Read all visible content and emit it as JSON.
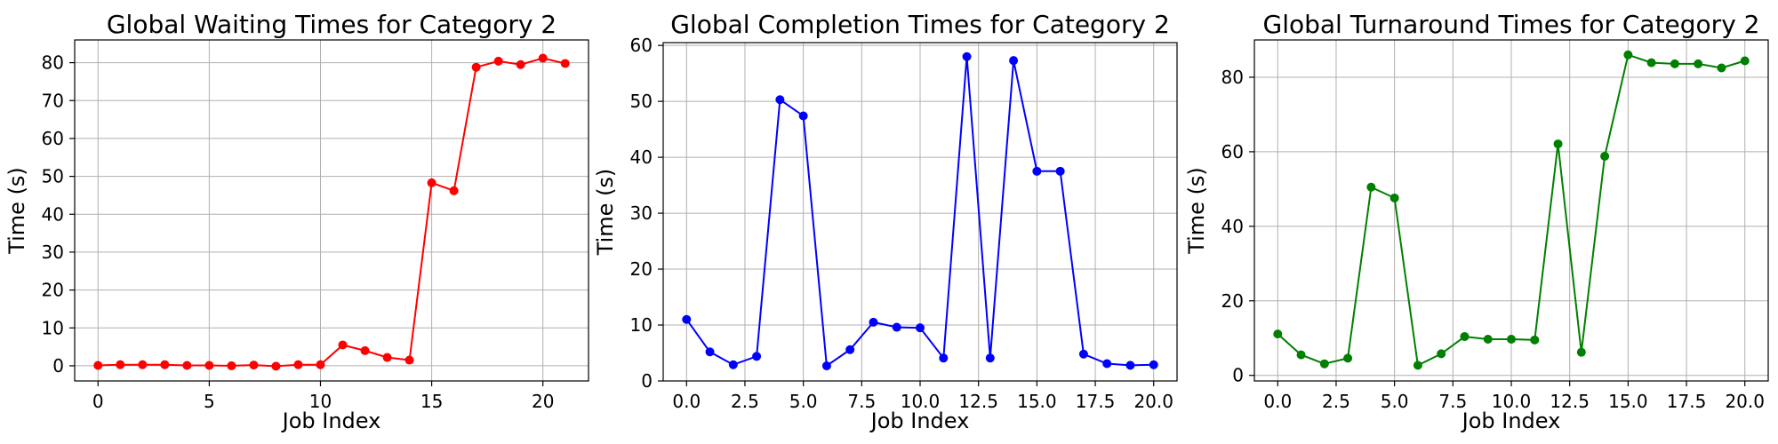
{
  "chart_data": [
    {
      "type": "line",
      "title": "Global Waiting Times for Category 2",
      "xlabel": "Job Index",
      "ylabel": "Time (s)",
      "xlim": [
        -1.05,
        22.05
      ],
      "ylim": [
        -4,
        86
      ],
      "xticks": [
        0,
        5,
        10,
        15,
        20
      ],
      "xtick_labels": [
        "0",
        "5",
        "10",
        "15",
        "20"
      ],
      "yticks": [
        0,
        10,
        20,
        30,
        40,
        50,
        60,
        70,
        80
      ],
      "ytick_labels": [
        "0",
        "10",
        "20",
        "30",
        "40",
        "50",
        "60",
        "70",
        "80"
      ],
      "grid": true,
      "color": "#ff0000",
      "series": [
        {
          "x": [
            0,
            1,
            2,
            3,
            4,
            5,
            6,
            7,
            8,
            9,
            10,
            11,
            12,
            13,
            14,
            15,
            16,
            17,
            18,
            19,
            20,
            21
          ],
          "values": [
            0.1,
            0.3,
            0.3,
            0.3,
            0.1,
            0.1,
            0.0,
            0.2,
            -0.1,
            0.3,
            0.3,
            5.5,
            4.0,
            2.2,
            1.5,
            48.3,
            46.2,
            78.8,
            80.4,
            79.5,
            81.2,
            79.8
          ]
        }
      ]
    },
    {
      "type": "line",
      "title": "Global Completion Times for Category 2",
      "xlabel": "Job Index",
      "ylabel": "Time (s)",
      "xlim": [
        -1.0,
        21.0
      ],
      "ylim": [
        0,
        60.5
      ],
      "xticks": [
        0,
        2.5,
        5,
        7.5,
        10,
        12.5,
        15,
        17.5,
        20
      ],
      "xtick_labels": [
        "0.0",
        "2.5",
        "5.0",
        "7.5",
        "10.0",
        "12.5",
        "15.0",
        "17.5",
        "20.0"
      ],
      "yticks": [
        0,
        10,
        20,
        30,
        40,
        50,
        60
      ],
      "ytick_labels": [
        "0",
        "10",
        "20",
        "30",
        "40",
        "50",
        "60"
      ],
      "grid": true,
      "color": "#0000ff",
      "series": [
        {
          "x": [
            0,
            1,
            2,
            3,
            4,
            5,
            6,
            7,
            8,
            9,
            10,
            11,
            12,
            13,
            14,
            15,
            16,
            17,
            18,
            19,
            20
          ],
          "values": [
            11.0,
            5.2,
            2.9,
            4.4,
            50.3,
            47.4,
            2.7,
            5.6,
            10.5,
            9.6,
            9.5,
            4.1,
            58.0,
            4.1,
            57.3,
            37.5,
            37.5,
            4.8,
            3.1,
            2.8,
            2.9
          ]
        }
      ]
    },
    {
      "type": "line",
      "title": "Global Turnaround Times for Category 2",
      "xlabel": "Job Index",
      "ylabel": "Time (s)",
      "xlim": [
        -1.0,
        21.0
      ],
      "ylim": [
        -1.5,
        90
      ],
      "xticks": [
        0,
        2.5,
        5,
        7.5,
        10,
        12.5,
        15,
        17.5,
        20
      ],
      "xtick_labels": [
        "0.0",
        "2.5",
        "5.0",
        "7.5",
        "10.0",
        "12.5",
        "15.0",
        "17.5",
        "20.0"
      ],
      "yticks": [
        0,
        20,
        40,
        60,
        80
      ],
      "ytick_labels": [
        "0",
        "20",
        "40",
        "60",
        "80"
      ],
      "grid": true,
      "color": "#008000",
      "series": [
        {
          "x": [
            0,
            1,
            2,
            3,
            4,
            5,
            6,
            7,
            8,
            9,
            10,
            11,
            12,
            13,
            14,
            15,
            16,
            17,
            18,
            19,
            20
          ],
          "values": [
            11.1,
            5.5,
            3.1,
            4.6,
            50.5,
            47.6,
            2.7,
            5.8,
            10.4,
            9.7,
            9.7,
            9.5,
            62.1,
            6.2,
            58.8,
            86.0,
            83.9,
            83.6,
            83.6,
            82.5,
            84.4
          ]
        }
      ]
    }
  ]
}
